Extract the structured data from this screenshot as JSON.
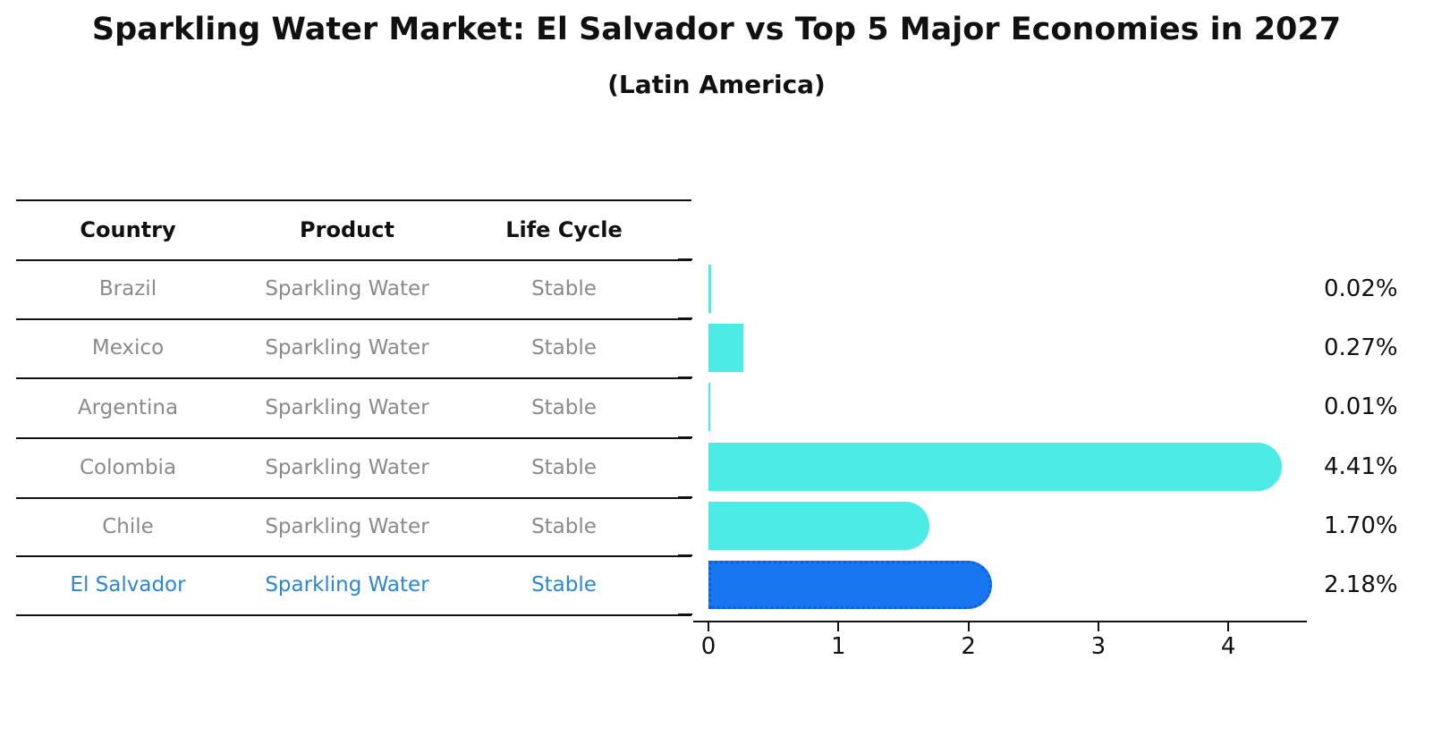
{
  "title": "Sparkling Water Market: El Salvador vs Top 5 Major Economies in 2027",
  "subtitle": "(Latin America)",
  "table": {
    "headers": [
      "Country",
      "Product",
      "Life Cycle"
    ],
    "rows": [
      {
        "country": "Brazil",
        "product": "Sparkling Water",
        "life_cycle": "Stable"
      },
      {
        "country": "Mexico",
        "product": "Sparkling Water",
        "life_cycle": "Stable"
      },
      {
        "country": "Argentina",
        "product": "Sparkling Water",
        "life_cycle": "Stable"
      },
      {
        "country": "Colombia",
        "product": "Sparkling Water",
        "life_cycle": "Stable"
      },
      {
        "country": "Chile",
        "product": "Sparkling Water",
        "life_cycle": "Stable"
      },
      {
        "country": "El Salvador",
        "product": "Sparkling Water",
        "life_cycle": "Stable"
      }
    ],
    "row_text_color": "#8a8a8a",
    "highlight_row_index": 5,
    "highlight_text_color": "#2E86D0"
  },
  "chart_data": {
    "type": "bar",
    "orientation": "horizontal",
    "title": "Sparkling Water Market: El Salvador vs Top 5 Major Economies in 2027",
    "subtitle": "(Latin America)",
    "categories": [
      "Brazil",
      "Mexico",
      "Argentina",
      "Colombia",
      "Chile",
      "El Salvador"
    ],
    "values": [
      0.02,
      0.27,
      0.01,
      4.41,
      1.7,
      2.18
    ],
    "value_labels": [
      "0.02%",
      "0.27%",
      "0.01%",
      "4.41%",
      "1.70%",
      "2.18%"
    ],
    "xlabel": "",
    "ylabel": "",
    "xlim": [
      0,
      4.6
    ],
    "xticks": [
      0,
      1,
      2,
      3,
      4
    ],
    "grid": false,
    "legend": false,
    "bar_color": "#4DEBE6",
    "highlight_index": 5,
    "highlight_color": "#1877F0",
    "highlight_border_color": "#0E5FD8"
  }
}
